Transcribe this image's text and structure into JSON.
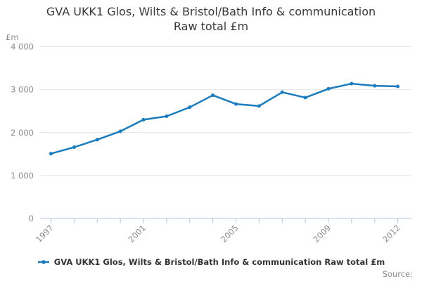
{
  "header": {
    "title_line1": "GVA UKK1 Glos, Wilts & Bristol/Bath Info & communication",
    "title_line2": "Raw total £m"
  },
  "legend": {
    "label": "GVA UKK1 Glos, Wilts & Bristol/Bath Info & communication Raw total £m"
  },
  "footer": {
    "source_label": "Source:"
  },
  "colors": {
    "series": "#1a7bbd",
    "gridline": "#e4e4e4",
    "axis": "#b6c5d8",
    "tick_label": "#8c8c8c",
    "title": "#383838",
    "legend_text": "#333333",
    "source_text": "#8c8c8c",
    "background": "#ffffff"
  },
  "chart_data": {
    "type": "line",
    "title": "GVA UKK1 Glos, Wilts & Bristol/Bath Info & communication Raw total £m",
    "xlabel": "",
    "ylabel": "£m",
    "categories": [
      "1997",
      "1998",
      "1999",
      "2000",
      "2001",
      "2002",
      "2003",
      "2004",
      "2005",
      "2006",
      "2007",
      "2008",
      "2009",
      "2010",
      "2011",
      "2012"
    ],
    "values": [
      1510,
      1660,
      1835,
      2030,
      2300,
      2380,
      2590,
      2870,
      2665,
      2620,
      2940,
      2815,
      3020,
      3140,
      3090,
      3075
    ],
    "ylim": [
      0,
      4000
    ],
    "yticks": [
      {
        "value": 0,
        "label": "0"
      },
      {
        "value": 1000,
        "label": "1 000"
      },
      {
        "value": 2000,
        "label": "2 000"
      },
      {
        "value": 3000,
        "label": "3 000"
      },
      {
        "value": 4000,
        "label": "4 000"
      }
    ],
    "xticks_shown": [
      {
        "index": 0,
        "label": "1997"
      },
      {
        "index": 4,
        "label": "2001"
      },
      {
        "index": 8,
        "label": "2005"
      },
      {
        "index": 12,
        "label": "2009"
      },
      {
        "index": 15,
        "label": "2012"
      }
    ],
    "x_tick_every_category": true,
    "grid": true,
    "marker": "circle",
    "legend_position": "bottom"
  }
}
